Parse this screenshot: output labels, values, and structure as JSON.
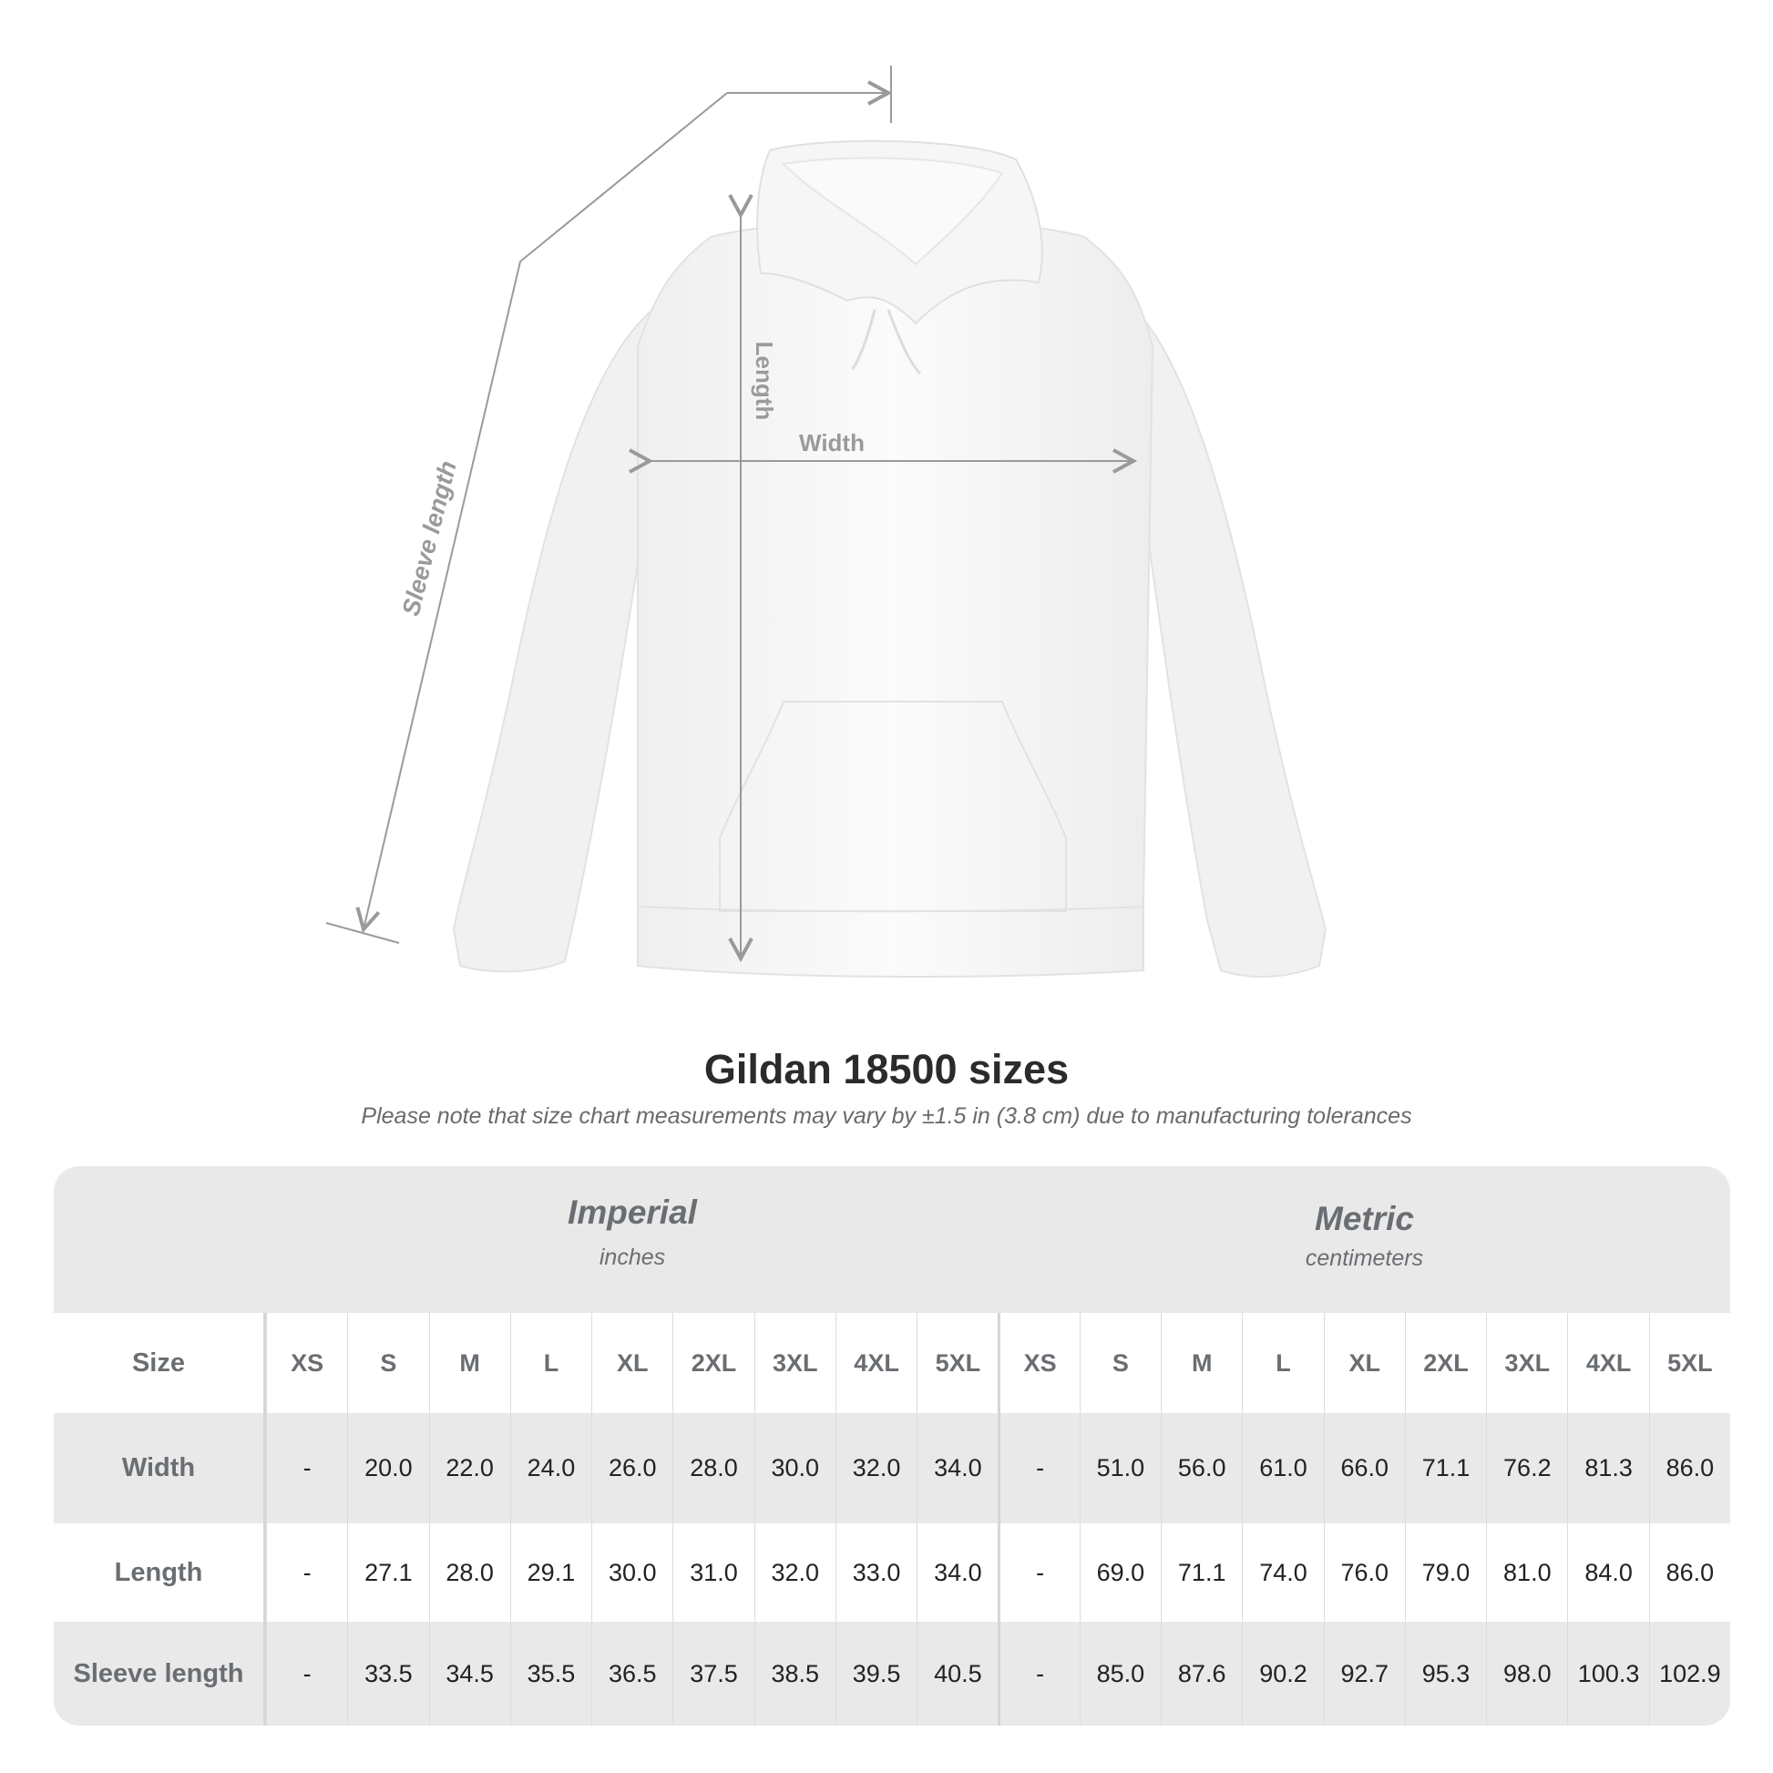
{
  "diagram": {
    "labels": {
      "sleeve_length": "Sleeve length",
      "length": "Length",
      "width": "Width"
    }
  },
  "title": "Gildan 18500 sizes",
  "subtitle": "Please note that size chart measurements may vary by ±1.5 in (3.8 cm) due to manufacturing tolerances",
  "table": {
    "imperial": {
      "name": "Imperial",
      "unit": "inches"
    },
    "metric": {
      "name": "Metric",
      "unit": "centimeters"
    },
    "size_label": "Size",
    "sizes": [
      "XS",
      "S",
      "M",
      "L",
      "XL",
      "2XL",
      "3XL",
      "4XL",
      "5XL"
    ],
    "rows": [
      {
        "label": "Width",
        "imperial": [
          "-",
          "20.0",
          "22.0",
          "24.0",
          "26.0",
          "28.0",
          "30.0",
          "32.0",
          "34.0"
        ],
        "metric": [
          "-",
          "51.0",
          "56.0",
          "61.0",
          "66.0",
          "71.1",
          "76.2",
          "81.3",
          "86.0"
        ]
      },
      {
        "label": "Length",
        "imperial": [
          "-",
          "27.1",
          "28.0",
          "29.1",
          "30.0",
          "31.0",
          "32.0",
          "33.0",
          "34.0"
        ],
        "metric": [
          "-",
          "69.0",
          "71.1",
          "74.0",
          "76.0",
          "79.0",
          "81.0",
          "84.0",
          "86.0"
        ]
      },
      {
        "label": "Sleeve length",
        "imperial": [
          "-",
          "33.5",
          "34.5",
          "35.5",
          "36.5",
          "37.5",
          "38.5",
          "39.5",
          "40.5"
        ],
        "metric": [
          "-",
          "85.0",
          "87.6",
          "90.2",
          "92.7",
          "95.3",
          "98.0",
          "100.3",
          "102.9"
        ]
      }
    ]
  },
  "colors": {
    "band": "#e9e9e9",
    "label_text": "#6a6e72",
    "measure_line": "#9a9a9a"
  }
}
